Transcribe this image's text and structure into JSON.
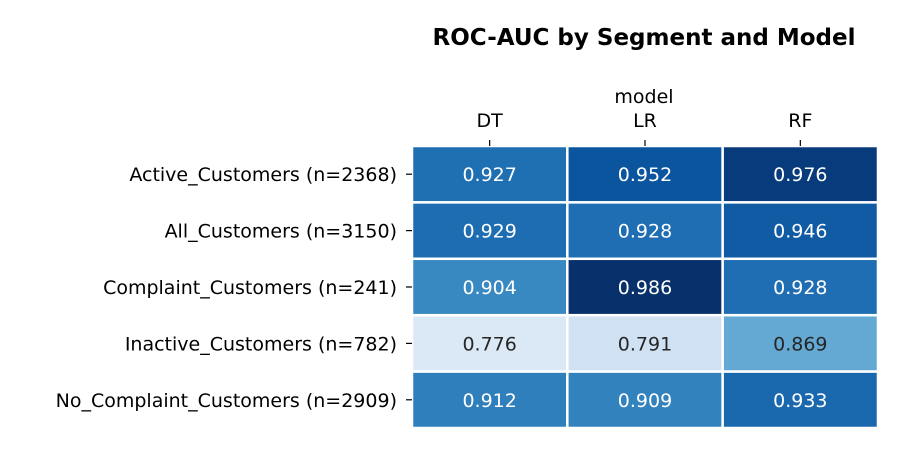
{
  "chart_data": {
    "type": "heatmap",
    "title": "ROC-AUC by Segment and Model",
    "xlabel": "model",
    "ylabel": "",
    "x_position": "top",
    "columns": [
      "DT",
      "LR",
      "RF"
    ],
    "rows": [
      "Active_Customers (n=2368)",
      "All_Customers (n=3150)",
      "Complaint_Customers (n=241)",
      "Inactive_Customers (n=782)",
      "No_Complaint_Customers (n=2909)"
    ],
    "values": [
      [
        0.927,
        0.952,
        0.976
      ],
      [
        0.929,
        0.928,
        0.946
      ],
      [
        0.904,
        0.986,
        0.928
      ],
      [
        0.776,
        0.791,
        0.869
      ],
      [
        0.912,
        0.909,
        0.933
      ]
    ],
    "value_format": "3 decimals",
    "colormap": "Blues",
    "vmin": 0.776,
    "vmax": 0.986,
    "grid_color": "#ffffff",
    "legend": "none"
  }
}
